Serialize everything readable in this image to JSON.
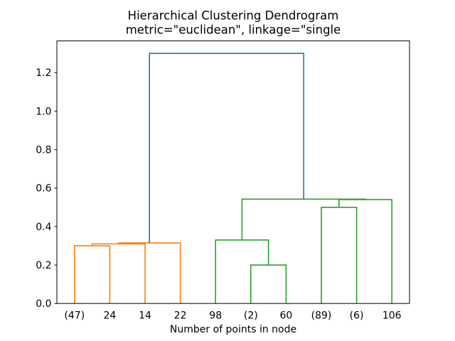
{
  "chart_data": {
    "type": "dendrogram",
    "title": "Hierarchical Clustering Dendrogram",
    "subtitle": "metric=\"euclidean\", linkage=\"single",
    "xlabel": "Number of points in node",
    "ylabel": "",
    "xlim": [
      0,
      100
    ],
    "ylim": [
      0,
      1.365
    ],
    "yticks": [
      "0.0",
      "0.2",
      "0.4",
      "0.6",
      "0.8",
      "1.0",
      "1.2"
    ],
    "leaf_labels": [
      "(47)",
      "24",
      "14",
      "22",
      "98",
      "(2)",
      "60",
      "(89)",
      "(6)",
      "106"
    ],
    "leaf_positions": [
      5,
      15,
      25,
      35,
      45,
      55,
      65,
      75,
      85,
      95
    ],
    "grid": false,
    "legend": null,
    "colors": {
      "root_link": "#1f77b4",
      "cluster_left": "#ff7f0e",
      "cluster_right": "#2ca02c",
      "axis": "#000000",
      "background": "#ffffff"
    },
    "links": [
      {
        "x1": 5,
        "y1": 0,
        "x2": 15,
        "y2": 0,
        "h": 0.3,
        "color": "#ff7f0e"
      },
      {
        "x1": 10,
        "y1": 0.3,
        "x2": 25,
        "y2": 0,
        "h": 0.31,
        "color": "#ff7f0e"
      },
      {
        "x1": 17.5,
        "y1": 0.31,
        "x2": 35,
        "y2": 0,
        "h": 0.315,
        "color": "#ff7f0e"
      },
      {
        "x1": 55,
        "y1": 0,
        "x2": 65,
        "y2": 0,
        "h": 0.2,
        "color": "#2ca02c"
      },
      {
        "x1": 45,
        "y1": 0,
        "x2": 60,
        "y2": 0.2,
        "h": 0.33,
        "color": "#2ca02c"
      },
      {
        "x1": 75,
        "y1": 0,
        "x2": 85,
        "y2": 0,
        "h": 0.5,
        "color": "#2ca02c"
      },
      {
        "x1": 80,
        "y1": 0.5,
        "x2": 95,
        "y2": 0,
        "h": 0.54,
        "color": "#2ca02c"
      },
      {
        "x1": 52.5,
        "y1": 0.33,
        "x2": 87.5,
        "y2": 0.54,
        "h": 0.5425,
        "color": "#2ca02c"
      },
      {
        "x1": 26.25,
        "y1": 0.315,
        "x2": 70,
        "y2": 0.5425,
        "h": 1.3,
        "color": "#1f77b4"
      }
    ]
  }
}
